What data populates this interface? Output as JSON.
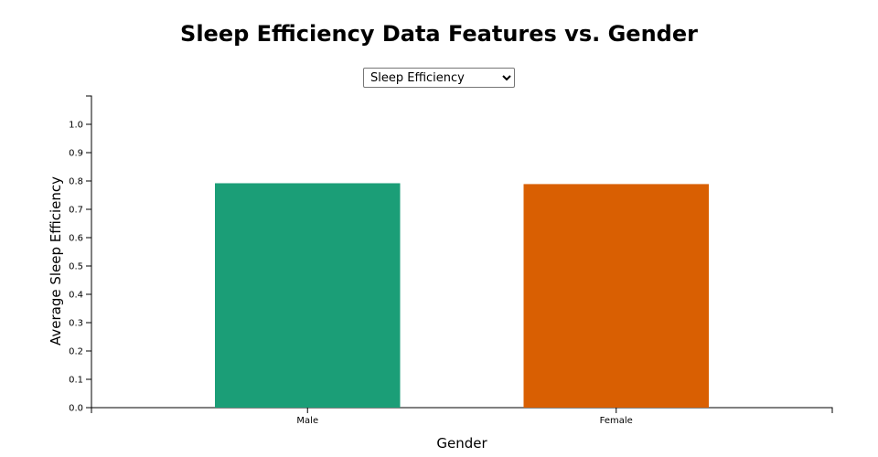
{
  "title": "Sleep Efficiency Data Features vs. Gender",
  "feature_select": {
    "selected": "Sleep Efficiency",
    "options": [
      "Sleep Efficiency"
    ]
  },
  "chart_data": {
    "type": "bar",
    "categories": [
      "Male",
      "Female"
    ],
    "values": [
      0.792,
      0.789
    ],
    "colors": [
      "#1b9e77",
      "#d95f02"
    ],
    "xlabel": "Gender",
    "ylabel": "Average Sleep Efficiency",
    "ylim": [
      0,
      1.1
    ],
    "yticks": [
      0.0,
      0.1,
      0.2,
      0.3,
      0.4,
      0.5,
      0.6,
      0.7,
      0.8,
      0.9,
      1.0
    ],
    "grid": false
  }
}
